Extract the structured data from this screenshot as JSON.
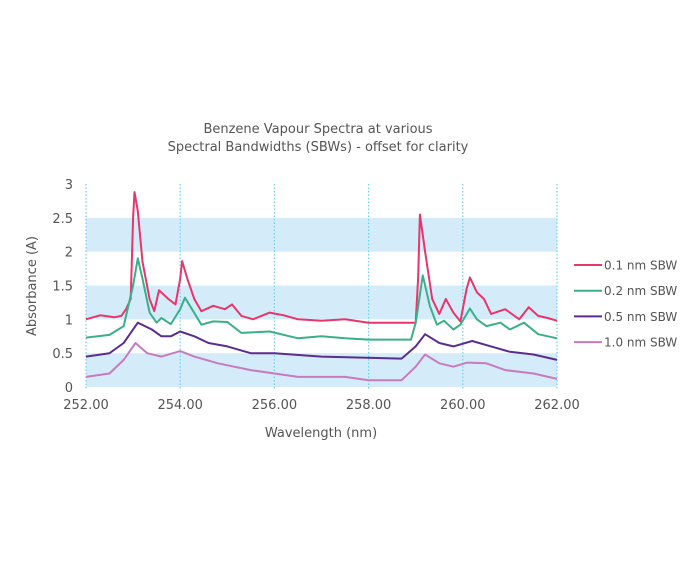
{
  "chart_data": {
    "type": "line",
    "title": [
      "Benzene Vapour Spectra at various",
      "Spectral Bandwidths (SBWs) - offset for clarity"
    ],
    "xlabel": "Wavelength (nm)",
    "ylabel": "Absorbance (A)",
    "xlim": [
      252,
      262
    ],
    "ylim": [
      0,
      3
    ],
    "xticks": [
      "252.00",
      "254.00",
      "256.00",
      "258.00",
      "260.00",
      "262.00"
    ],
    "yticks": [
      "0",
      "0.5",
      "1",
      "1.5",
      "2",
      "2.5",
      "3"
    ],
    "grid": "vertical dotted lines; alternating horizontal light-blue bands",
    "band_color": "#d4ebf9",
    "gridline_color": "#6fd0ea",
    "legend_position": "right",
    "series": [
      {
        "name": "0.1 nm SBW",
        "color": "#e8356a",
        "x": [
          252.0,
          252.3,
          252.6,
          252.75,
          252.85,
          252.95,
          253.0,
          253.03,
          253.1,
          253.2,
          253.35,
          253.45,
          253.55,
          253.75,
          253.9,
          254.0,
          254.04,
          254.15,
          254.3,
          254.45,
          254.7,
          254.95,
          255.1,
          255.3,
          255.55,
          255.9,
          256.2,
          256.5,
          257.0,
          257.5,
          258.0,
          258.5,
          259.0,
          259.05,
          259.09,
          259.2,
          259.35,
          259.5,
          259.64,
          259.8,
          259.95,
          260.08,
          260.15,
          260.3,
          260.45,
          260.6,
          260.9,
          261.2,
          261.4,
          261.6,
          261.8,
          262.0
        ],
        "y": [
          1.0,
          1.06,
          1.03,
          1.05,
          1.15,
          1.3,
          2.5,
          2.88,
          2.6,
          1.85,
          1.3,
          1.12,
          1.43,
          1.3,
          1.22,
          1.6,
          1.86,
          1.6,
          1.3,
          1.12,
          1.2,
          1.15,
          1.22,
          1.05,
          1.0,
          1.1,
          1.06,
          1.0,
          0.98,
          1.0,
          0.95,
          0.95,
          0.95,
          1.6,
          2.55,
          2.0,
          1.3,
          1.08,
          1.3,
          1.1,
          0.97,
          1.45,
          1.62,
          1.4,
          1.3,
          1.08,
          1.15,
          1.0,
          1.18,
          1.05,
          1.02,
          0.98
        ]
      },
      {
        "name": "0.2 nm SBW",
        "color": "#3ab08a",
        "x": [
          252.0,
          252.5,
          252.8,
          253.0,
          253.1,
          253.2,
          253.35,
          253.5,
          253.6,
          253.8,
          254.0,
          254.1,
          254.25,
          254.45,
          254.7,
          255.0,
          255.3,
          255.9,
          256.5,
          257.0,
          257.5,
          258.0,
          258.9,
          259.0,
          259.15,
          259.3,
          259.45,
          259.6,
          259.8,
          259.95,
          260.15,
          260.3,
          260.5,
          260.8,
          261.0,
          261.3,
          261.6,
          262.0
        ],
        "y": [
          0.73,
          0.77,
          0.9,
          1.5,
          1.9,
          1.6,
          1.1,
          0.95,
          1.02,
          0.93,
          1.15,
          1.32,
          1.15,
          0.92,
          0.97,
          0.96,
          0.8,
          0.82,
          0.72,
          0.75,
          0.72,
          0.7,
          0.7,
          0.95,
          1.65,
          1.2,
          0.92,
          0.98,
          0.85,
          0.92,
          1.16,
          1.0,
          0.9,
          0.95,
          0.85,
          0.95,
          0.78,
          0.72
        ]
      },
      {
        "name": "0.5 nm SBW",
        "color": "#5b2d8e",
        "x": [
          252.0,
          252.5,
          252.8,
          253.1,
          253.4,
          253.6,
          253.8,
          254.0,
          254.3,
          254.6,
          255.0,
          255.5,
          256.0,
          257.0,
          258.7,
          259.0,
          259.2,
          259.5,
          259.8,
          260.2,
          260.6,
          261.0,
          261.5,
          262.0
        ],
        "y": [
          0.45,
          0.5,
          0.65,
          0.95,
          0.85,
          0.75,
          0.75,
          0.82,
          0.75,
          0.65,
          0.6,
          0.5,
          0.5,
          0.45,
          0.42,
          0.6,
          0.78,
          0.65,
          0.6,
          0.68,
          0.6,
          0.52,
          0.48,
          0.4
        ]
      },
      {
        "name": "1.0 nm SBW",
        "color": "#c77bbf",
        "x": [
          252.0,
          252.5,
          252.8,
          253.05,
          253.3,
          253.6,
          254.0,
          254.3,
          254.8,
          255.5,
          256.0,
          256.5,
          257.5,
          258.0,
          258.7,
          259.0,
          259.2,
          259.5,
          259.8,
          260.1,
          260.5,
          260.9,
          261.5,
          262.0
        ],
        "y": [
          0.15,
          0.2,
          0.4,
          0.65,
          0.5,
          0.45,
          0.53,
          0.45,
          0.35,
          0.25,
          0.2,
          0.15,
          0.15,
          0.1,
          0.1,
          0.3,
          0.48,
          0.35,
          0.3,
          0.36,
          0.35,
          0.25,
          0.2,
          0.12
        ]
      }
    ]
  }
}
